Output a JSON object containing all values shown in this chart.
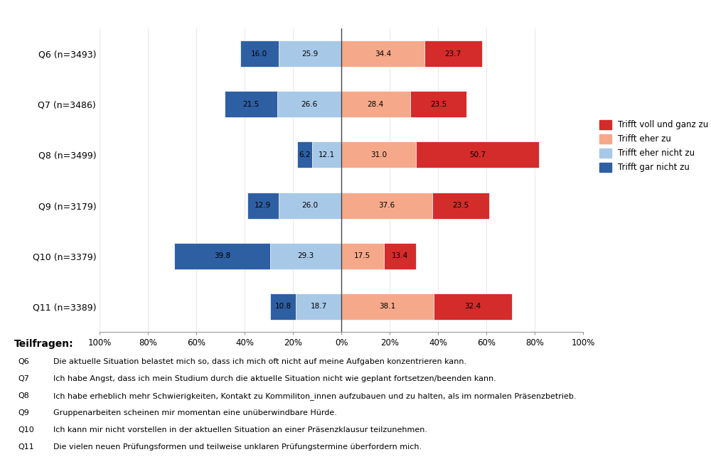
{
  "questions": [
    "Q6 (n=3493)",
    "Q7 (n=3486)",
    "Q8 (n=3499)",
    "Q9 (n=3179)",
    "Q10 (n=3379)",
    "Q11 (n=3389)"
  ],
  "gar_nicht": [
    16.0,
    21.5,
    6.2,
    12.9,
    39.8,
    10.8
  ],
  "eher_nicht": [
    25.9,
    26.6,
    12.1,
    26.0,
    29.3,
    18.7
  ],
  "eher_zu": [
    34.4,
    28.4,
    31.0,
    37.6,
    17.5,
    38.1
  ],
  "voll_ganz": [
    23.7,
    23.5,
    50.7,
    23.5,
    13.4,
    32.4
  ],
  "color_gar_nicht": "#2e5fa3",
  "color_eher_nicht": "#a8c8e8",
  "color_eher_zu": "#f5a98a",
  "color_voll_ganz": "#d42b2b",
  "background_color": "#ffffff",
  "teilfragen_title": "Teilfragen:",
  "teilfragen": [
    [
      "Q6",
      "Die aktuelle Situation belastet mich so, dass ich mich oft nicht auf meine Aufgaben konzentrieren kann."
    ],
    [
      "Q7",
      "Ich habe Angst, dass ich mein Studium durch die aktuelle Situation nicht wie geplant fortsetzen/beenden kann."
    ],
    [
      "Q8",
      "Ich habe erheblich mehr Schwierigkeiten, Kontakt zu Kommiliton_innen aufzubauen und zu halten, als im normalen Präsenzbetrieb."
    ],
    [
      "Q9",
      "Gruppenarbeiten scheinen mir momentan eine unüberwindbare Hürde."
    ],
    [
      "Q10",
      "Ich kann mir nicht vorstellen in der aktuellen Situation an einer Präsenzklausur teilzunehmen."
    ],
    [
      "Q11",
      "Die vielen neuen Prüfungsformen und teilweise unklaren Prüfungstermine überfordern mich."
    ]
  ],
  "tick_positions": [
    -100,
    -80,
    -60,
    -40,
    -20,
    0,
    20,
    40,
    60,
    80,
    100
  ],
  "tick_labels": [
    "100%",
    "80%",
    "60%",
    "40%",
    "20%",
    "0%",
    "20%",
    "40%",
    "60%",
    "80%",
    "100%"
  ]
}
